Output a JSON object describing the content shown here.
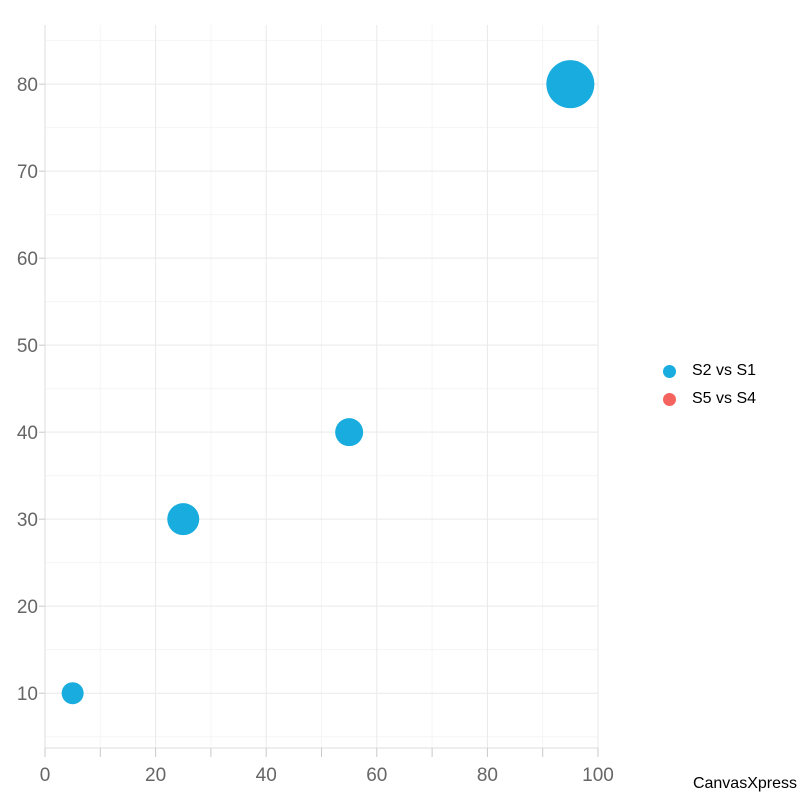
{
  "branding": {
    "watermark": "CanvasXpress"
  },
  "legend": {
    "position": "right",
    "items": [
      {
        "label": "S2 vs S1",
        "color": "#18ACDF"
      },
      {
        "label": "S5 vs S4",
        "color": "#F4635E"
      }
    ]
  },
  "chart_data": {
    "type": "scatter",
    "subtype": "bubble",
    "title": "",
    "xlabel": "",
    "ylabel": "",
    "xlim": [
      0,
      100
    ],
    "ylim": [
      3.7,
      86.8
    ],
    "x_tick_labels": [
      0,
      20,
      40,
      60,
      80,
      100
    ],
    "x_minor_step": 10,
    "y_tick_labels": [
      10,
      20,
      30,
      40,
      50,
      60,
      70,
      80
    ],
    "y_minor_step": 5,
    "grid": true,
    "legend_position": "right",
    "series": [
      {
        "name": "S2 vs S1",
        "color": "#18ACDF",
        "points": [
          {
            "x": 5,
            "y": 10,
            "r": 11
          },
          {
            "x": 25,
            "y": 30,
            "r": 16
          },
          {
            "x": 55,
            "y": 40,
            "r": 14
          },
          {
            "x": 95,
            "y": 80,
            "r": 24
          }
        ]
      },
      {
        "name": "S5 vs S4",
        "color": "#F4635E",
        "points": []
      }
    ],
    "styles": {
      "background": "#ffffff",
      "axis_text_color": "#666666",
      "axis_text_size": 19,
      "grid_major_color": "#e9e9e9",
      "grid_minor_color": "#f5f5f5",
      "axis_line_color": "#dedede",
      "tick_color": "#c9c9c9"
    }
  }
}
